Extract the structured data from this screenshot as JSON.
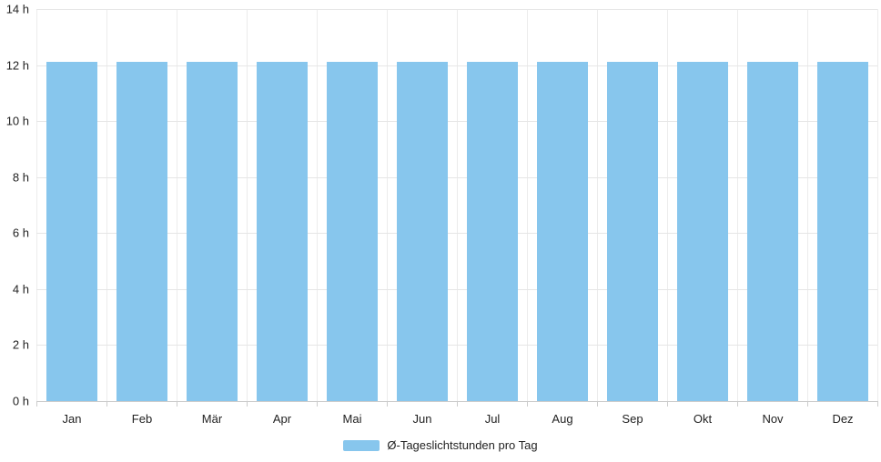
{
  "chart_data": {
    "type": "bar",
    "title": "",
    "categories": [
      "Jan",
      "Feb",
      "Mär",
      "Apr",
      "Mai",
      "Jun",
      "Jul",
      "Aug",
      "Sep",
      "Okt",
      "Nov",
      "Dez"
    ],
    "values": [
      12.1,
      12.1,
      12.1,
      12.1,
      12.1,
      12.1,
      12.1,
      12.1,
      12.1,
      12.1,
      12.1,
      12.1
    ],
    "series_name": "Ø-Tageslichtstunden pro Tag",
    "xlabel": "",
    "ylabel": "",
    "ylim": [
      0,
      14
    ],
    "ytick_values": [
      0,
      2,
      4,
      6,
      8,
      10,
      12,
      14
    ],
    "yticks": [
      "0 h",
      "2 h",
      "4 h",
      "6 h",
      "8 h",
      "10 h",
      "12 h",
      "14 h"
    ],
    "grid": true,
    "legend_position": "bottom",
    "colors": {
      "bar": "#87C6ED",
      "grid_horizontal": "#e6e6e6",
      "grid_vertical": "#ececec",
      "axis_line": "#cccccc",
      "tick": "#cccccc",
      "label": "#222222"
    }
  }
}
